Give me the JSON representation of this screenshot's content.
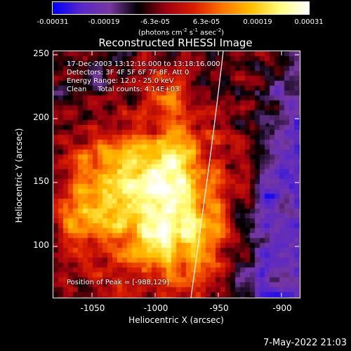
{
  "colorbar": {
    "tick_labels": [
      "-0.00031",
      "-0.00019",
      "-6.3e-05",
      "6.3e-05",
      "0.00019",
      "0.00031"
    ],
    "units_main": "(photons cm",
    "units_exp1": "-2",
    "units_mid1": " s",
    "units_exp2": "-1",
    "units_mid2": " asec",
    "units_exp3": "-2",
    "units_end": ")",
    "range": [
      -0.00031,
      0.00031
    ]
  },
  "chart_data": {
    "type": "heatmap",
    "title": "Reconstructed RHESSI Image",
    "xlabel": "Heliocentric X (arcsec)",
    "ylabel": "Heliocentric Y (arcsec)",
    "xlim": [
      -1080,
      -885
    ],
    "ylim": [
      57,
      252
    ],
    "x_ticks": [
      "-1050",
      "-1000",
      "-950",
      "-900"
    ],
    "y_ticks": [
      "250",
      "200",
      "150",
      "100"
    ],
    "colormap": [
      "#0000ff",
      "#5a28c8",
      "#7838a0",
      "#000000",
      "#a00010",
      "#dc2000",
      "#ff7800",
      "#ffc000",
      "#ffff80",
      "#ffffff"
    ],
    "peak_position": [
      -988,
      129
    ],
    "limb_color": "#ffffff"
  },
  "annotations": {
    "line1": "17-Dec-2003 13:12:16.000 to 13:18:16.000",
    "line2": "Detectors: 3F 4F 5F 6F 7F 8F, Att 0",
    "line3": "Energy Range: 12.0 - 25.0 keV",
    "line4": "Clean     Total counts: 4.14E+03",
    "peak": "Position of Peak = [-988,129]"
  },
  "footer": {
    "date": "7-May-2022 21:03"
  }
}
